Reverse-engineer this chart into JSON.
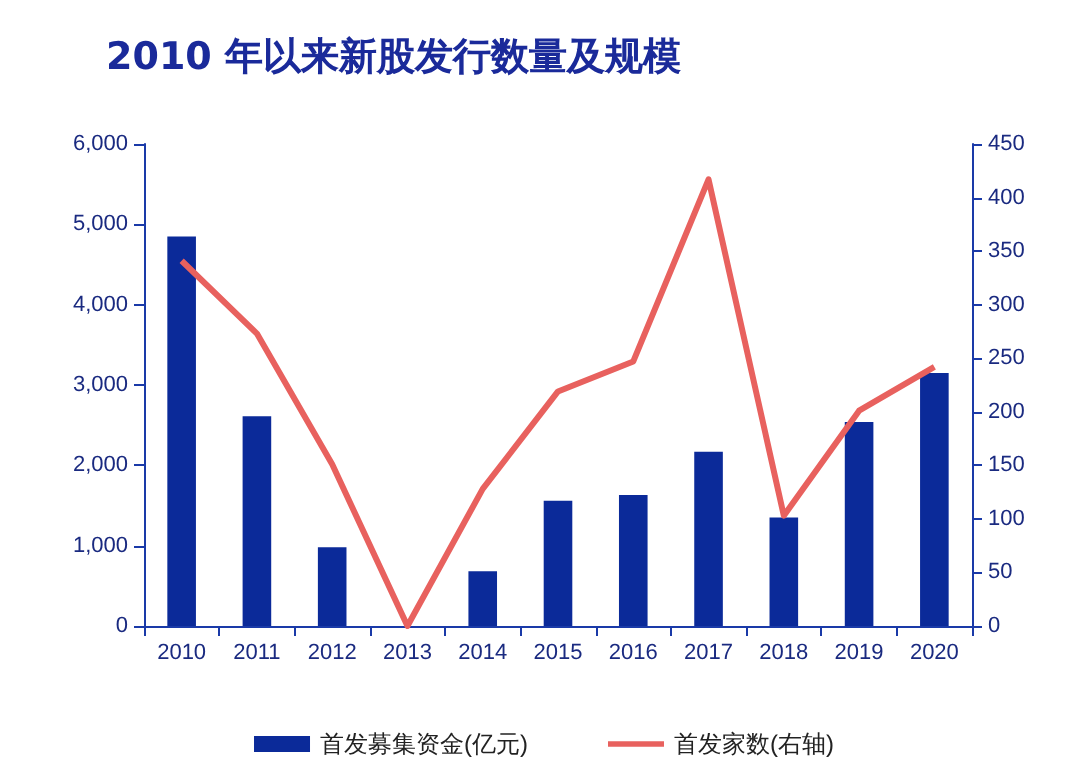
{
  "chart_data": {
    "type": "bar",
    "title": "2010 年以来新股发行数量及规模",
    "categories": [
      "2010",
      "2011",
      "2012",
      "2013",
      "2014",
      "2015",
      "2016",
      "2017",
      "2018",
      "2019",
      "2020"
    ],
    "series": [
      {
        "name": "首发募集资金(亿元)",
        "color": "#0b2a99",
        "values": [
          4850,
          2610,
          980,
          0,
          680,
          1560,
          1630,
          2170,
          1350,
          2540,
          3150
        ]
      },
      {
        "name": "首发家数(右轴)",
        "type": "line",
        "axis": "y2",
        "color": "#e8615e",
        "values": [
          341,
          273,
          151,
          0,
          128,
          219,
          247,
          417,
          103,
          201,
          242
        ]
      }
    ],
    "ylim": [
      0,
      6000
    ],
    "yticks": [
      0,
      {
        "value": 1000,
        "label": "1,000"
      },
      {
        "value": 2000,
        "label": "2,000"
      },
      {
        "value": 3000,
        "label": "3,000"
      },
      {
        "value": 4000,
        "label": "4,000"
      },
      {
        "value": 5000,
        "label": "5,000"
      },
      {
        "value": 6000,
        "label": "6,000"
      }
    ],
    "y2lim": [
      0,
      450
    ],
    "y2ticks": [
      0,
      50,
      100,
      150,
      200,
      250,
      300,
      350,
      400,
      450
    ],
    "grid": false,
    "legend": "bottom",
    "marker": "none"
  }
}
